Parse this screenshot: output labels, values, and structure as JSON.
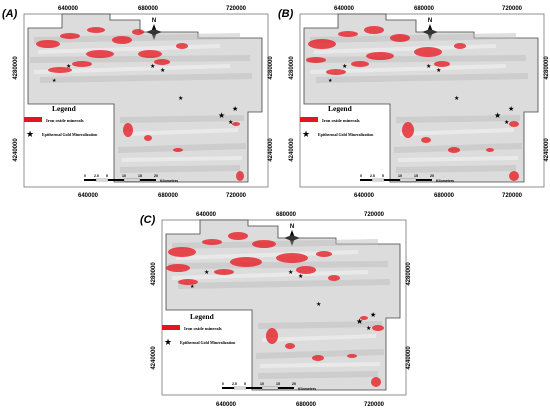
{
  "panels": [
    {
      "label": "(A)",
      "xticks_top": [
        "640000",
        "680000",
        "720000"
      ],
      "xticks_bottom": [
        "640000",
        "680000",
        "720000"
      ],
      "yticks_left": [
        "4280000",
        "4240000"
      ],
      "yticks_right": [
        "4280000",
        "4240000"
      ],
      "north": "N",
      "scale_ticks": [
        "0",
        "2.5",
        "5",
        "10",
        "15",
        "20"
      ],
      "scale_unit": "Kilometers"
    },
    {
      "label": "(B)",
      "xticks_top": [
        "640000",
        "680000",
        "720000"
      ],
      "xticks_bottom": [
        "640000",
        "680000",
        "720000"
      ],
      "yticks_left": [
        "4280000",
        "4240000"
      ],
      "yticks_right": [
        "4280000",
        "4240000"
      ],
      "north": "N",
      "scale_ticks": [
        "0",
        "2.5",
        "5",
        "10",
        "15",
        "20"
      ],
      "scale_unit": "Kilometers"
    },
    {
      "label": "(C)",
      "xticks_top": [
        "640000",
        "680000",
        "720000"
      ],
      "xticks_bottom": [
        "640000",
        "680000",
        "720000"
      ],
      "yticks_left": [
        "4280000",
        "4240000"
      ],
      "yticks_right": [
        "4280000",
        "4240000"
      ],
      "north": "N",
      "scale_ticks": [
        "0",
        "2.5",
        "5",
        "10",
        "15",
        "20"
      ],
      "scale_unit": "Kilometers"
    }
  ],
  "legend": {
    "title": "Legend",
    "items": [
      {
        "label": "Iron oxide minerals",
        "symbol": "red-rectangle",
        "color": "#e8141c"
      },
      {
        "label": "Epithermal Gold Mineralization",
        "symbol": "black-star",
        "color": "#000000"
      }
    ]
  },
  "colors": {
    "iron_oxide": "#e8141c",
    "hillshade": "#d9d9d9",
    "frame": "#555555"
  }
}
